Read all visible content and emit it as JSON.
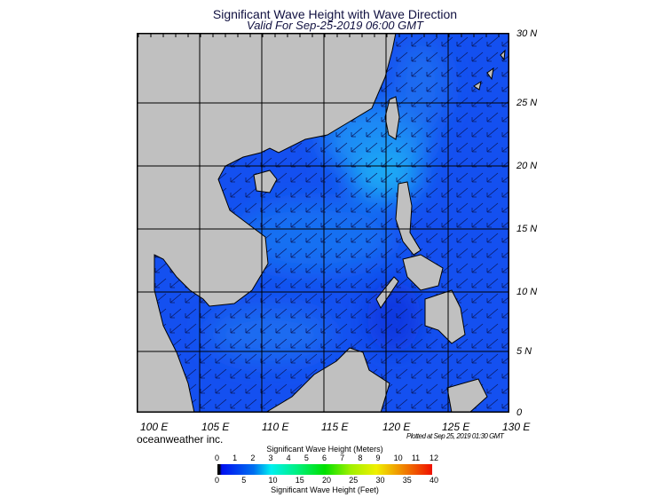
{
  "title": "Significant Wave Height with Wave Direction",
  "subtitle": "Valid For Sep-25-2019 06:00 GMT",
  "lat_labels": [
    "30 N",
    "25 N",
    "20 N",
    "15 N",
    "10 N",
    "5 N",
    "0"
  ],
  "lon_labels": [
    "100 E",
    "105 E",
    "110 E",
    "115 E",
    "120 E",
    "125 E",
    "130 E"
  ],
  "brand": "oceanweather inc.",
  "plotted": "Plotted at Sep 25, 2019 01:30 GMT",
  "colorbar": {
    "meters_title": "Significant Wave Height (Meters)",
    "meters_ticks": [
      "0",
      "1",
      "2",
      "3",
      "4",
      "5",
      "6",
      "7",
      "8",
      "9",
      "10",
      "11",
      "12"
    ],
    "feet_ticks": [
      "0",
      "5",
      "10",
      "15",
      "20",
      "25",
      "30",
      "35",
      "40"
    ],
    "feet_title": "Significant Wave Height (Feet)"
  },
  "colors": {
    "land": "#c0c0c0",
    "ocean": "#1450f0",
    "ocean_light": "#1a8cf5"
  },
  "wave_direction": "southwest"
}
